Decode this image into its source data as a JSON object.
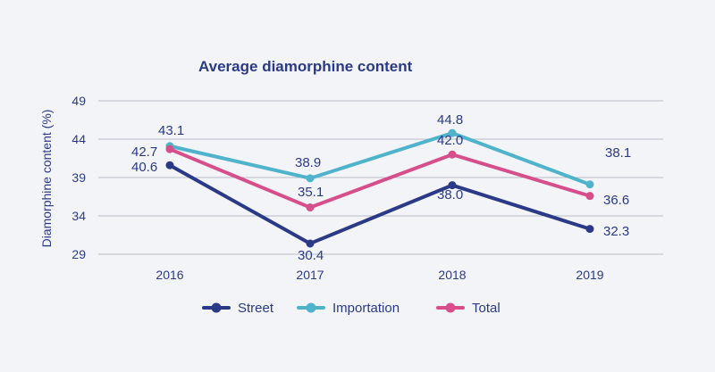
{
  "chart_data": {
    "type": "line",
    "title": "Average diamorphine content",
    "xlabel": "",
    "ylabel": "Diamorphine content (%)",
    "categories": [
      "2016",
      "2017",
      "2018",
      "2019"
    ],
    "yticks": [
      29,
      34,
      39,
      44,
      49
    ],
    "ylim": [
      29,
      49
    ],
    "grid": true,
    "legend_position": "bottom",
    "series": [
      {
        "name": "Street",
        "color": "#2b3a86",
        "values": [
          40.6,
          30.4,
          38.0,
          32.3
        ],
        "labels": [
          "40.6",
          "30.4",
          "38.0",
          "32.3"
        ]
      },
      {
        "name": "Importation",
        "color": "#4fb3cc",
        "values": [
          43.1,
          38.9,
          44.8,
          38.1
        ],
        "labels": [
          "43.1",
          "38.9",
          "44.8",
          "38.1"
        ]
      },
      {
        "name": "Total",
        "color": "#d64f8a",
        "values": [
          42.7,
          35.1,
          42.0,
          36.6
        ],
        "labels": [
          "42.7",
          "35.1",
          "42.0",
          "36.6"
        ]
      }
    ]
  },
  "colors": {
    "text": "#2b3a86",
    "grid": "#b9bcc6",
    "background": "#f3f4f8"
  }
}
